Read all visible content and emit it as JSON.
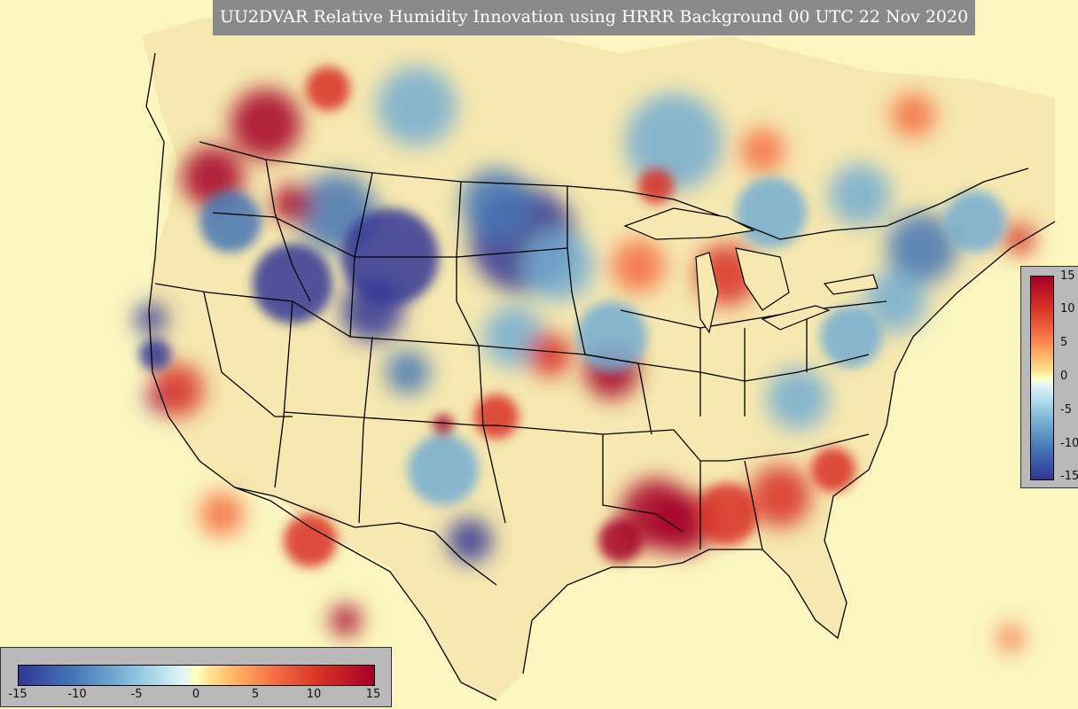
{
  "title": "UU2DVAR Relative Humidity Innovation using HRRR Background 00 UTC 22 Nov 2020",
  "colorbar": {
    "min": -15,
    "max": 15,
    "right_ticks": [
      "15",
      "10",
      "5",
      "0",
      "-5",
      "-10",
      "-15"
    ],
    "bottom_ticks": [
      "-15",
      "-10",
      "-5",
      "0",
      "5",
      "10",
      "15"
    ],
    "colors": [
      "#313695",
      "#4575b4",
      "#74add1",
      "#abd9e9",
      "#e0f3f8",
      "#ffffbf",
      "#fee090",
      "#fdae61",
      "#f46d43",
      "#d73027",
      "#a50026"
    ]
  },
  "background_color": "#fbf6c0"
}
